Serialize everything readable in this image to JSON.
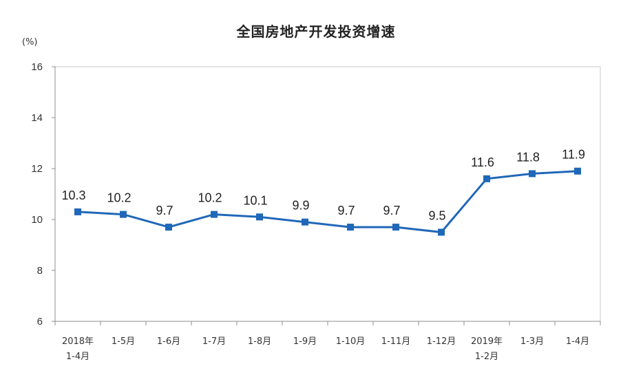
{
  "chart_data": {
    "type": "line",
    "title": "全国房地产开发投资增速",
    "unit_label": "(%)",
    "categories": [
      [
        "2018年",
        "1-4月"
      ],
      [
        "1-5月"
      ],
      [
        "1-6月"
      ],
      [
        "1-7月"
      ],
      [
        "1-8月"
      ],
      [
        "1-9月"
      ],
      [
        "1-10月"
      ],
      [
        "1-11月"
      ],
      [
        "1-12月"
      ],
      [
        "2019年",
        "1-2月"
      ],
      [
        "1-3月"
      ],
      [
        "1-4月"
      ]
    ],
    "values": [
      10.3,
      10.2,
      9.7,
      10.2,
      10.1,
      9.9,
      9.7,
      9.7,
      9.5,
      11.6,
      11.8,
      11.9
    ],
    "value_labels": [
      "10.3",
      "10.2",
      "9.7",
      "10.2",
      "10.1",
      "9.9",
      "9.7",
      "9.7",
      "9.5",
      "11.6",
      "11.8",
      "11.9"
    ],
    "ylim": [
      6,
      16
    ],
    "yticks": [
      6,
      8,
      10,
      12,
      14,
      16
    ],
    "grid": false,
    "colors": {
      "line": "#1f67b8",
      "marker": "#1f67b8",
      "axis": "#8c8c8c",
      "frame": "#c8c8c8"
    }
  }
}
